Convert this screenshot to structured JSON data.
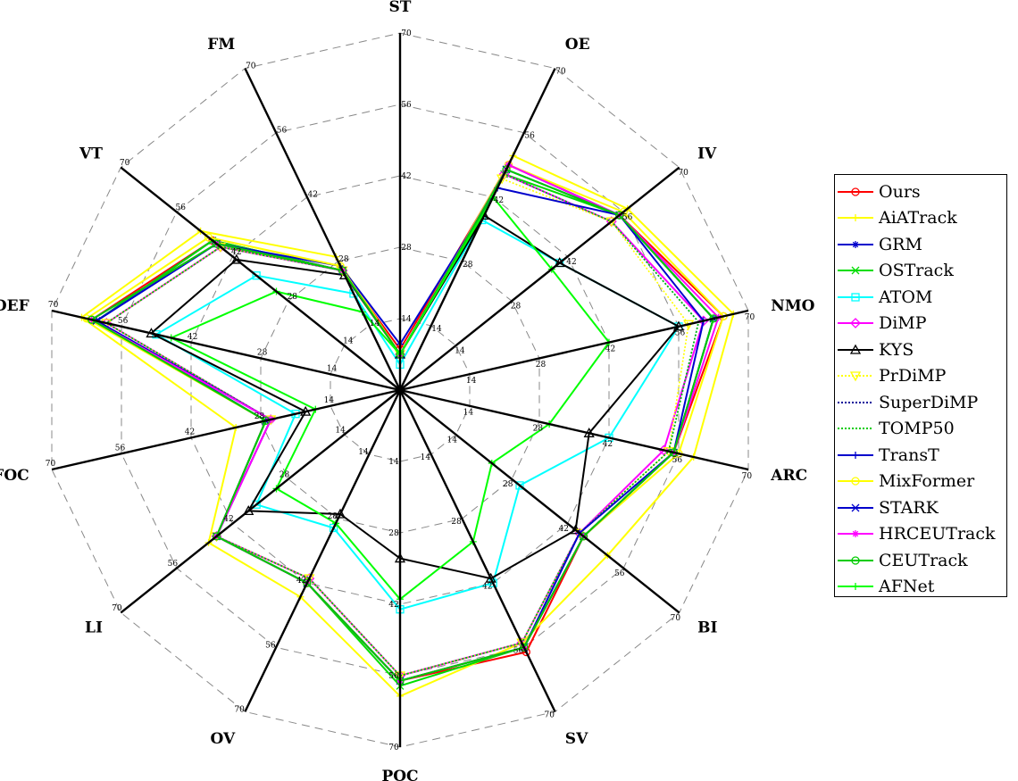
{
  "chart_data": {
    "type": "radar",
    "axes": [
      "ST",
      "OE",
      "IV",
      "NMO",
      "ARC",
      "BI",
      "SV",
      "POC",
      "OV",
      "LI",
      "FOC",
      "DEF",
      "VT",
      "FM"
    ],
    "rlim": [
      0,
      70
    ],
    "tick_values": [
      14,
      28,
      42,
      56,
      70
    ],
    "tick_labels": [
      "14",
      "28",
      "42",
      "56",
      "70"
    ],
    "grid": true,
    "legend_position": "right",
    "series": [
      {
        "name": "Ours",
        "color": "#ff0000",
        "style": "solid",
        "marker": "circle",
        "values": [
          8,
          49,
          55,
          65,
          55,
          46,
          57,
          57,
          42,
          46,
          27,
          62,
          47,
          26
        ]
      },
      {
        "name": "AiATrack",
        "color": "#ffff00",
        "style": "solid",
        "marker": "plus",
        "values": [
          7,
          51,
          57,
          67,
          59,
          52,
          55,
          60,
          45,
          48,
          33,
          64,
          50,
          29
        ]
      },
      {
        "name": "GRM",
        "color": "#0000cc",
        "style": "solid",
        "marker": "asterisk",
        "values": [
          7,
          49,
          55,
          63,
          55,
          46,
          56,
          57,
          42,
          46,
          27,
          61,
          47,
          26
        ]
      },
      {
        "name": "OSTrack",
        "color": "#00dd00",
        "style": "solid",
        "marker": "x",
        "values": [
          7,
          47,
          55,
          63,
          55,
          46,
          56,
          58,
          42,
          46,
          27,
          61,
          47,
          26
        ]
      },
      {
        "name": "ATOM",
        "color": "#00ffff",
        "style": "solid",
        "marker": "square",
        "values": [
          5,
          37,
          40,
          56,
          42,
          30,
          42,
          43,
          30,
          36,
          21,
          49,
          36,
          21
        ]
      },
      {
        "name": "DiMP",
        "color": "#ff00ff",
        "style": "solid",
        "marker": "diamond",
        "values": [
          7,
          47,
          53,
          61,
          53,
          45,
          55,
          56,
          41,
          46,
          26,
          59,
          45,
          26
        ]
      },
      {
        "name": "KYS",
        "color": "#000000",
        "style": "solid",
        "marker": "triangle",
        "values": [
          7,
          38,
          40,
          56,
          38,
          44,
          41,
          33,
          27,
          38,
          19,
          50,
          41,
          25
        ]
      },
      {
        "name": "PrDiMP",
        "color": "#ffff00",
        "style": "dotted",
        "marker": "triangle-down",
        "values": [
          7,
          46,
          53,
          58,
          54,
          45,
          55,
          56,
          41,
          46,
          26,
          59,
          45,
          26
        ]
      },
      {
        "name": "SuperDiMP",
        "color": "#000099",
        "style": "dotted",
        "marker": "none",
        "values": [
          7,
          47,
          53,
          60,
          54,
          45,
          55,
          56,
          41,
          46,
          26,
          59,
          45,
          26
        ]
      },
      {
        "name": "TOMP50",
        "color": "#00cc00",
        "style": "dotted",
        "marker": "none",
        "values": [
          7,
          47,
          53,
          60,
          54,
          45,
          55,
          56,
          41,
          46,
          26,
          59,
          45,
          26
        ]
      },
      {
        "name": "TransT",
        "color": "#0000cc",
        "style": "solid",
        "marker": "plus",
        "values": [
          9,
          44,
          55,
          61,
          55,
          45,
          56,
          57,
          42,
          46,
          26,
          61,
          46,
          27
        ]
      },
      {
        "name": "MixFormer",
        "color": "#ffff00",
        "style": "solid",
        "marker": "circle",
        "values": [
          7,
          49,
          56,
          65,
          56,
          46,
          56,
          57,
          42,
          46,
          27,
          63,
          48,
          27
        ]
      },
      {
        "name": "STARK",
        "color": "#0000cc",
        "style": "solid",
        "marker": "x",
        "values": [
          7,
          48,
          55,
          63,
          55,
          46,
          56,
          57,
          42,
          46,
          27,
          61,
          46,
          26
        ]
      },
      {
        "name": "HRCEUTrack",
        "color": "#ff00ff",
        "style": "solid",
        "marker": "asterisk",
        "values": [
          7,
          49,
          55,
          64,
          55,
          46,
          56,
          57,
          42,
          46,
          26,
          62,
          46,
          26
        ]
      },
      {
        "name": "CEUTrack",
        "color": "#00cc00",
        "style": "solid",
        "marker": "circle",
        "values": [
          7,
          48,
          55,
          63,
          55,
          46,
          56,
          57,
          42,
          46,
          27,
          62,
          46,
          26
        ]
      },
      {
        "name": "AFNet",
        "color": "#00ff00",
        "style": "solid",
        "marker": "plus",
        "values": [
          7,
          42,
          38,
          42,
          30,
          23,
          33,
          41,
          29,
          31,
          17,
          46,
          31,
          17
        ]
      }
    ]
  }
}
